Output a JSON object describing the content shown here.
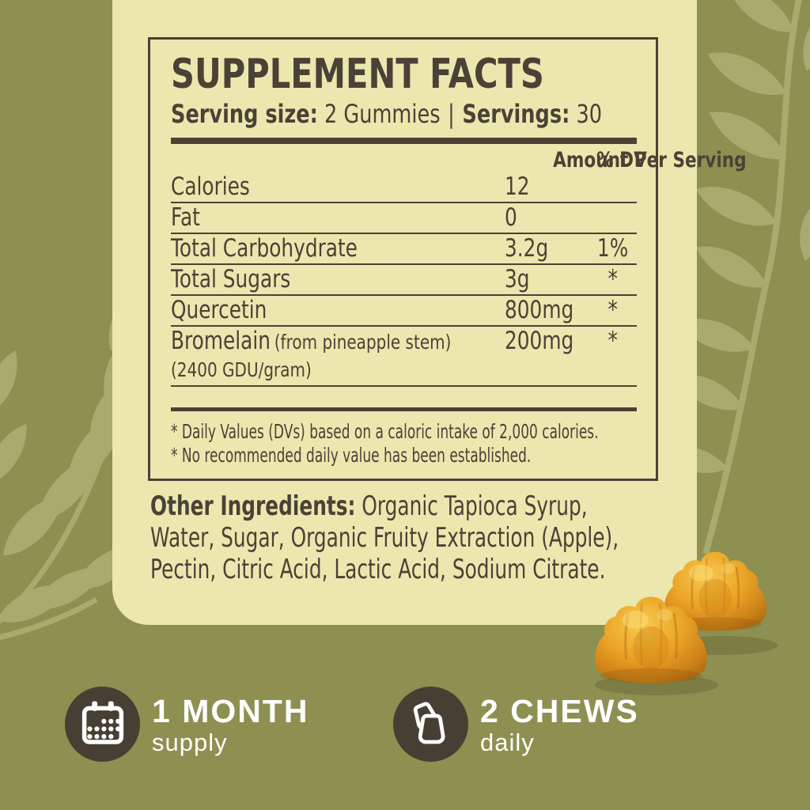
{
  "label": {
    "title": "SUPPLEMENT FACTS",
    "serving": {
      "size_label": "Serving size:",
      "size_value": "2 Gummies",
      "divider": "|",
      "count_label": "Servings:",
      "count_value": "30"
    },
    "table": {
      "amount_header": "Amount Per Serving",
      "dv_header": "% DV",
      "rows": [
        {
          "name": "Calories",
          "amount": "12",
          "dv": ""
        },
        {
          "name": "Fat",
          "amount": "0",
          "dv": ""
        },
        {
          "name": "Total Carbohydrate",
          "amount": "3.2g",
          "dv": "1%"
        },
        {
          "name": "Total Sugars",
          "amount": "3g",
          "dv": "*"
        },
        {
          "name": "Quercetin",
          "amount": "800mg",
          "dv": "*"
        },
        {
          "name": "Bromelain",
          "name_note": "(from pineapple stem)",
          "name_note2": "(2400 GDU/gram)",
          "amount": "200mg",
          "dv": "*"
        }
      ],
      "footnotes": [
        "* Daily Values (DVs)  based on a caloric intake of 2,000 calories.",
        "* No recommended daily value has been established."
      ]
    },
    "other_ingredients": {
      "label": "Other Ingredients:",
      "lines": [
        "Organic Tapioca Syrup,",
        "Water, Sugar, Organic Fruity Extraction (Apple),",
        "Pectin, Citric Acid, Lactic Acid, Sodium Citrate."
      ]
    }
  },
  "badges": [
    {
      "icon": "calendar-icon",
      "value": "1 MONTH",
      "caption": "supply"
    },
    {
      "icon": "gummy-icon",
      "value": "2 CHEWS",
      "caption": "daily"
    }
  ],
  "product_image": "two amber pineapple-flavored gummies",
  "colors": {
    "background": "#8D9051",
    "leaf_pattern": "#A7AB6E",
    "panel": "#ECE7AE",
    "ink": "#4A4236",
    "badge_circle": "#463F33",
    "badge_text": "#FFFFFF",
    "gummy": "#E9A125"
  }
}
